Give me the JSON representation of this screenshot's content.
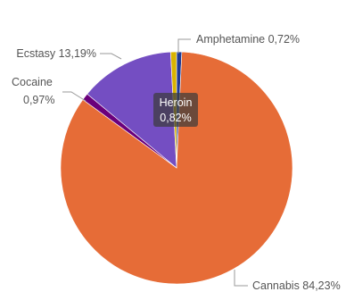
{
  "chart_data": {
    "type": "pie",
    "title": "",
    "slices": [
      {
        "name": "Amphetamine",
        "value_label": "0,72%",
        "value": 0.72,
        "color": "#1f3a93"
      },
      {
        "name": "Cannabis",
        "value_label": "84,23%",
        "value": 84.23,
        "color": "#e66c37"
      },
      {
        "name": "Cocaine",
        "value_label": "0,97%",
        "value": 0.97,
        "color": "#6b007b"
      },
      {
        "name": "Ecstasy",
        "value_label": "13,19%",
        "value": 13.19,
        "color": "#744ec2"
      },
      {
        "name": "Heroin",
        "value_label": "0,82%",
        "value": 0.82,
        "color": "#d9b300"
      }
    ],
    "tooltip": {
      "name": "Heroin",
      "value_label": "0,82%"
    }
  }
}
